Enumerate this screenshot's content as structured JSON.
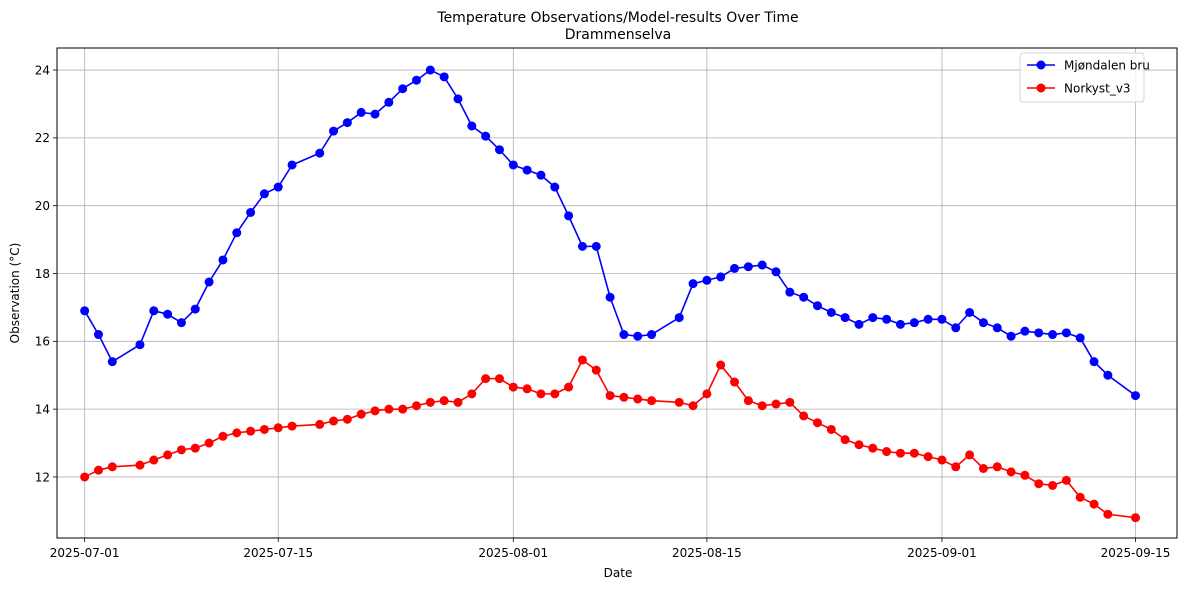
{
  "chart_data": {
    "type": "line",
    "title": "Temperature Observations/Model-results Over Time",
    "subtitle": "Drammenselva",
    "xlabel": "Date",
    "ylabel": "Observation (°C)",
    "xlim": [
      "2025-06-29",
      "2025-09-18"
    ],
    "ylim": [
      10.2,
      24.65
    ],
    "x_ticks": [
      "2025-07-01",
      "2025-07-15",
      "2025-08-01",
      "2025-08-15",
      "2025-09-01",
      "2025-09-15"
    ],
    "y_ticks": [
      12,
      14,
      16,
      18,
      20,
      22,
      24
    ],
    "grid": true,
    "legend_position": "top-right",
    "series": [
      {
        "name": "Mjøndalen bru",
        "color": "#0000ff",
        "points": [
          [
            "2025-07-01",
            16.9
          ],
          [
            "2025-07-02",
            16.2
          ],
          [
            "2025-07-03",
            15.4
          ],
          [
            "2025-07-05",
            15.9
          ],
          [
            "2025-07-06",
            16.9
          ],
          [
            "2025-07-07",
            16.8
          ],
          [
            "2025-07-08",
            16.55
          ],
          [
            "2025-07-09",
            16.95
          ],
          [
            "2025-07-10",
            17.75
          ],
          [
            "2025-07-11",
            18.4
          ],
          [
            "2025-07-12",
            19.2
          ],
          [
            "2025-07-13",
            19.8
          ],
          [
            "2025-07-14",
            20.35
          ],
          [
            "2025-07-15",
            20.55
          ],
          [
            "2025-07-16",
            21.2
          ],
          [
            "2025-07-18",
            21.55
          ],
          [
            "2025-07-19",
            22.2
          ],
          [
            "2025-07-20",
            22.45
          ],
          [
            "2025-07-21",
            22.75
          ],
          [
            "2025-07-22",
            22.7
          ],
          [
            "2025-07-23",
            23.05
          ],
          [
            "2025-07-24",
            23.45
          ],
          [
            "2025-07-25",
            23.7
          ],
          [
            "2025-07-26",
            24.0
          ],
          [
            "2025-07-27",
            23.8
          ],
          [
            "2025-07-28",
            23.15
          ],
          [
            "2025-07-29",
            22.35
          ],
          [
            "2025-07-30",
            22.05
          ],
          [
            "2025-07-31",
            21.65
          ],
          [
            "2025-08-01",
            21.2
          ],
          [
            "2025-08-02",
            21.05
          ],
          [
            "2025-08-03",
            20.9
          ],
          [
            "2025-08-04",
            20.55
          ],
          [
            "2025-08-05",
            19.7
          ],
          [
            "2025-08-06",
            18.8
          ],
          [
            "2025-08-07",
            18.8
          ],
          [
            "2025-08-08",
            17.3
          ],
          [
            "2025-08-09",
            16.2
          ],
          [
            "2025-08-10",
            16.15
          ],
          [
            "2025-08-11",
            16.2
          ],
          [
            "2025-08-13",
            16.7
          ],
          [
            "2025-08-14",
            17.7
          ],
          [
            "2025-08-15",
            17.8
          ],
          [
            "2025-08-16",
            17.9
          ],
          [
            "2025-08-17",
            18.15
          ],
          [
            "2025-08-18",
            18.2
          ],
          [
            "2025-08-19",
            18.25
          ],
          [
            "2025-08-20",
            18.05
          ],
          [
            "2025-08-21",
            17.45
          ],
          [
            "2025-08-22",
            17.3
          ],
          [
            "2025-08-23",
            17.05
          ],
          [
            "2025-08-24",
            16.85
          ],
          [
            "2025-08-25",
            16.7
          ],
          [
            "2025-08-26",
            16.5
          ],
          [
            "2025-08-27",
            16.7
          ],
          [
            "2025-08-28",
            16.65
          ],
          [
            "2025-08-29",
            16.5
          ],
          [
            "2025-08-30",
            16.55
          ],
          [
            "2025-08-31",
            16.65
          ],
          [
            "2025-09-01",
            16.65
          ],
          [
            "2025-09-02",
            16.4
          ],
          [
            "2025-09-03",
            16.85
          ],
          [
            "2025-09-04",
            16.55
          ],
          [
            "2025-09-05",
            16.4
          ],
          [
            "2025-09-06",
            16.15
          ],
          [
            "2025-09-07",
            16.3
          ],
          [
            "2025-09-08",
            16.25
          ],
          [
            "2025-09-09",
            16.2
          ],
          [
            "2025-09-10",
            16.25
          ],
          [
            "2025-09-11",
            16.1
          ],
          [
            "2025-09-12",
            15.4
          ],
          [
            "2025-09-13",
            15.0
          ],
          [
            "2025-09-15",
            14.4
          ]
        ]
      },
      {
        "name": "Norkyst_v3",
        "color": "#ff0000",
        "points": [
          [
            "2025-07-01",
            12.0
          ],
          [
            "2025-07-02",
            12.2
          ],
          [
            "2025-07-03",
            12.3
          ],
          [
            "2025-07-05",
            12.35
          ],
          [
            "2025-07-06",
            12.5
          ],
          [
            "2025-07-07",
            12.65
          ],
          [
            "2025-07-08",
            12.8
          ],
          [
            "2025-07-09",
            12.85
          ],
          [
            "2025-07-10",
            13.0
          ],
          [
            "2025-07-11",
            13.2
          ],
          [
            "2025-07-12",
            13.3
          ],
          [
            "2025-07-13",
            13.35
          ],
          [
            "2025-07-14",
            13.4
          ],
          [
            "2025-07-15",
            13.45
          ],
          [
            "2025-07-16",
            13.5
          ],
          [
            "2025-07-18",
            13.55
          ],
          [
            "2025-07-19",
            13.65
          ],
          [
            "2025-07-20",
            13.7
          ],
          [
            "2025-07-21",
            13.85
          ],
          [
            "2025-07-22",
            13.95
          ],
          [
            "2025-07-23",
            14.0
          ],
          [
            "2025-07-24",
            14.0
          ],
          [
            "2025-07-25",
            14.1
          ],
          [
            "2025-07-26",
            14.2
          ],
          [
            "2025-07-27",
            14.25
          ],
          [
            "2025-07-28",
            14.2
          ],
          [
            "2025-07-29",
            14.45
          ],
          [
            "2025-07-30",
            14.9
          ],
          [
            "2025-07-31",
            14.9
          ],
          [
            "2025-08-01",
            14.65
          ],
          [
            "2025-08-02",
            14.6
          ],
          [
            "2025-08-03",
            14.45
          ],
          [
            "2025-08-04",
            14.45
          ],
          [
            "2025-08-05",
            14.65
          ],
          [
            "2025-08-06",
            15.45
          ],
          [
            "2025-08-07",
            15.15
          ],
          [
            "2025-08-08",
            14.4
          ],
          [
            "2025-08-09",
            14.35
          ],
          [
            "2025-08-10",
            14.3
          ],
          [
            "2025-08-11",
            14.25
          ],
          [
            "2025-08-13",
            14.2
          ],
          [
            "2025-08-14",
            14.1
          ],
          [
            "2025-08-15",
            14.45
          ],
          [
            "2025-08-16",
            15.3
          ],
          [
            "2025-08-17",
            14.8
          ],
          [
            "2025-08-18",
            14.25
          ],
          [
            "2025-08-19",
            14.1
          ],
          [
            "2025-08-20",
            14.15
          ],
          [
            "2025-08-21",
            14.2
          ],
          [
            "2025-08-22",
            13.8
          ],
          [
            "2025-08-23",
            13.6
          ],
          [
            "2025-08-24",
            13.4
          ],
          [
            "2025-08-25",
            13.1
          ],
          [
            "2025-08-26",
            12.95
          ],
          [
            "2025-08-27",
            12.85
          ],
          [
            "2025-08-28",
            12.75
          ],
          [
            "2025-08-29",
            12.7
          ],
          [
            "2025-08-30",
            12.7
          ],
          [
            "2025-08-31",
            12.6
          ],
          [
            "2025-09-01",
            12.5
          ],
          [
            "2025-09-02",
            12.3
          ],
          [
            "2025-09-03",
            12.65
          ],
          [
            "2025-09-04",
            12.25
          ],
          [
            "2025-09-05",
            12.3
          ],
          [
            "2025-09-06",
            12.15
          ],
          [
            "2025-09-07",
            12.05
          ],
          [
            "2025-09-08",
            11.8
          ],
          [
            "2025-09-09",
            11.75
          ],
          [
            "2025-09-10",
            11.9
          ],
          [
            "2025-09-11",
            11.4
          ],
          [
            "2025-09-12",
            11.2
          ],
          [
            "2025-09-13",
            10.9
          ],
          [
            "2025-09-15",
            10.8
          ]
        ]
      }
    ]
  }
}
